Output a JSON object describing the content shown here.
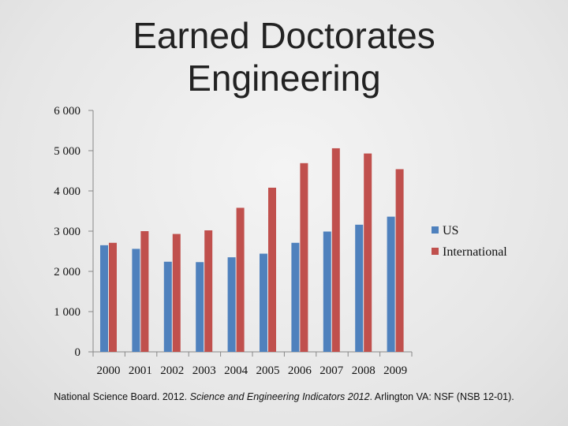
{
  "chart_data": {
    "type": "bar",
    "title": [
      "Earned Doctorates",
      "Engineering"
    ],
    "categories": [
      "2000",
      "2001",
      "2002",
      "2003",
      "2004",
      "2005",
      "2006",
      "2007",
      "2008",
      "2009"
    ],
    "series": [
      {
        "name": "US",
        "color": "#4f81bd",
        "values": [
          2650,
          2560,
          2240,
          2230,
          2350,
          2440,
          2710,
          2990,
          3160,
          3360
        ]
      },
      {
        "name": "International",
        "color": "#c0504d",
        "values": [
          2710,
          3000,
          2930,
          3020,
          3580,
          4080,
          4690,
          5060,
          4930,
          4540
        ]
      }
    ],
    "y_ticks": [
      "0",
      "1 000",
      "2 000",
      "3 000",
      "4 000",
      "5 000",
      "6 000"
    ],
    "ylim": [
      0,
      6000
    ],
    "grid": false,
    "legend": "right"
  },
  "source": {
    "prefix": "National Science Board. 2012. ",
    "italic": "Science and Engineering Indicators 2012",
    "suffix": ". Arlington VA: NSF (NSB 12-01)."
  }
}
